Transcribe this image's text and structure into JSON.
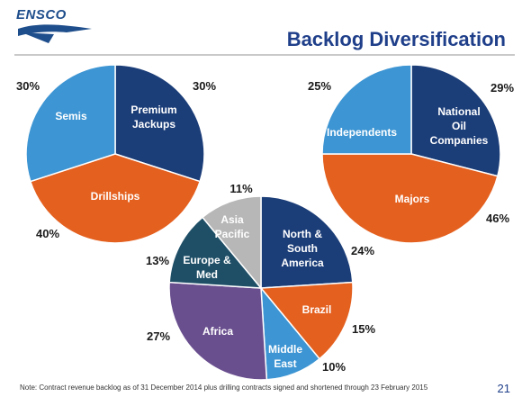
{
  "header": {
    "logo_text": "ENSCO",
    "title": "Backlog Diversification"
  },
  "footer": {
    "note": "Note: Contract revenue backlog as of 31 December 2014 plus drilling contracts signed and shortened through 23 February 2015",
    "page_number": "21"
  },
  "colors": {
    "navy": "#1b3d78",
    "light_blue": "#3d95d3",
    "orange": "#e4601f",
    "gray": "#b7b7b7",
    "teal": "#1f4f67",
    "purple": "#6a4f8f",
    "title_blue": "#1f3f8a"
  },
  "chart_data": [
    {
      "type": "pie",
      "slices": [
        {
          "label": [
            "Premium",
            "Jackups"
          ],
          "value": 30,
          "pct_text": "30%",
          "color": "#1b3d78"
        },
        {
          "label": [
            "Drillships"
          ],
          "value": 40,
          "pct_text": "40%",
          "color": "#e4601f"
        },
        {
          "label": [
            "Semis"
          ],
          "value": 30,
          "pct_text": "30%",
          "color": "#3d95d3"
        }
      ]
    },
    {
      "type": "pie",
      "slices": [
        {
          "label": [
            "National",
            "Oil",
            "Companies"
          ],
          "value": 29,
          "pct_text": "29%",
          "color": "#1b3d78"
        },
        {
          "label": [
            "Majors"
          ],
          "value": 46,
          "pct_text": "46%",
          "color": "#e4601f"
        },
        {
          "label": [
            "Independents"
          ],
          "value": 25,
          "pct_text": "25%",
          "color": "#3d95d3"
        }
      ]
    },
    {
      "type": "pie",
      "slices": [
        {
          "label": [
            "North &",
            "South",
            "America"
          ],
          "value": 24,
          "pct_text": "24%",
          "color": "#1b3d78"
        },
        {
          "label": [
            "Brazil"
          ],
          "value": 15,
          "pct_text": "15%",
          "color": "#e4601f"
        },
        {
          "label": [
            "Middle",
            "East"
          ],
          "value": 10,
          "pct_text": "10%",
          "color": "#3d95d3"
        },
        {
          "label": [
            "Africa"
          ],
          "value": 27,
          "pct_text": "27%",
          "color": "#6a4f8f"
        },
        {
          "label": [
            "Europe &",
            "Med"
          ],
          "value": 13,
          "pct_text": "13%",
          "color": "#1f4f67"
        },
        {
          "label": [
            "Asia",
            "Pacific"
          ],
          "value": 11,
          "pct_text": "11%",
          "color": "#b7b7b7",
          "label_color": "#1a1a1a"
        }
      ]
    }
  ]
}
